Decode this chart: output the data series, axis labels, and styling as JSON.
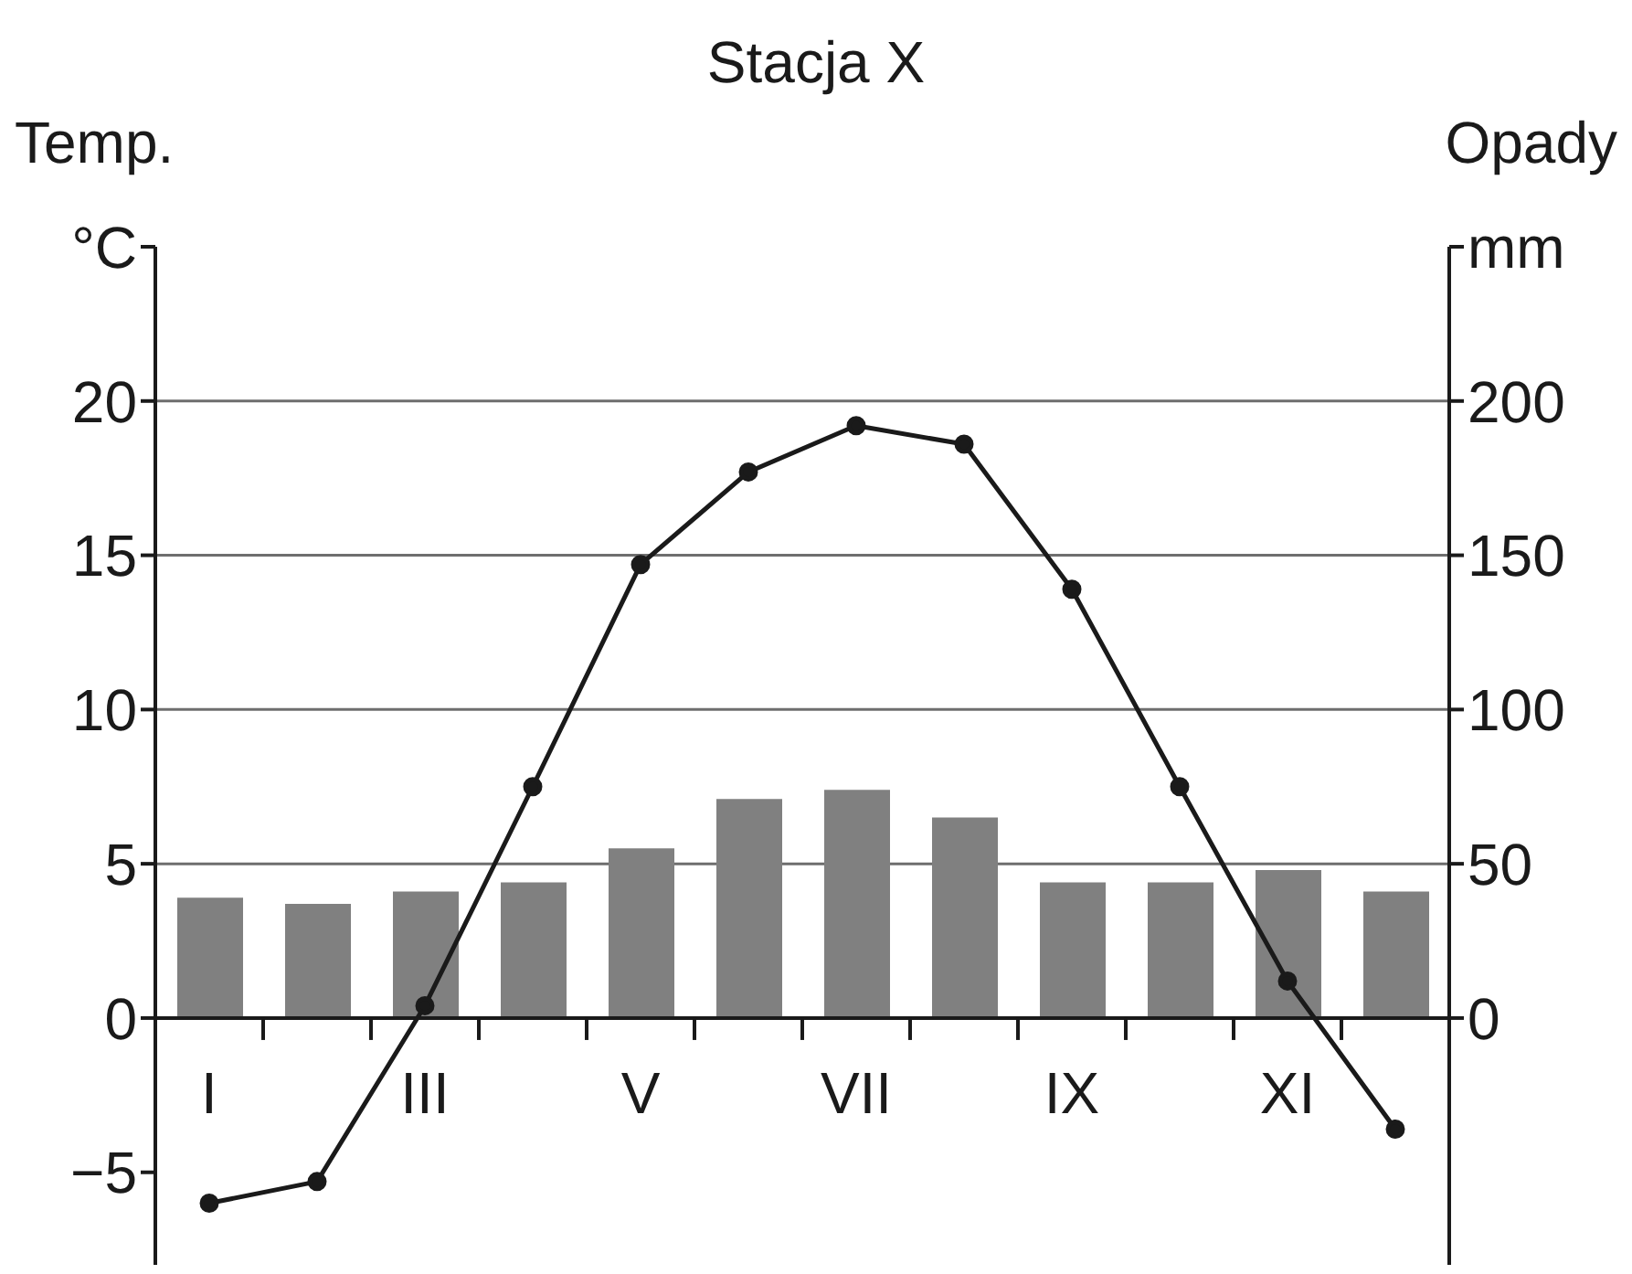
{
  "chart_data": {
    "type": "bar",
    "title": "Stacja X",
    "ylabel": "Temp.",
    "y2label": "Opady",
    "categories": [
      "I",
      null,
      "III",
      null,
      "V",
      null,
      "VII",
      null,
      "IX",
      null,
      "XI",
      null
    ],
    "series": [
      {
        "axis": "y2",
        "color": "#808080",
        "values": [
          39,
          37,
          41,
          44,
          55,
          71,
          74,
          65,
          44,
          44,
          48,
          41
        ]
      },
      {
        "type": "line",
        "axis": "y",
        "color": "#1a1a1a",
        "marker": "circle",
        "line_style": "solid",
        "values": [
          -6.0,
          -5.3,
          0.4,
          7.5,
          14.7,
          17.7,
          19.2,
          18.6,
          13.9,
          7.5,
          1.2,
          -3.6
        ]
      }
    ],
    "ylim": [
      -8,
      25
    ],
    "yticks": [
      -5,
      0,
      5,
      10,
      15,
      20,
      {
        "value": 25,
        "label": "°C"
      }
    ],
    "y2lim": [
      -80,
      250
    ],
    "y2ticks": [
      0,
      50,
      100,
      150,
      200,
      {
        "value": 250,
        "label": "mm"
      }
    ],
    "grid": "y"
  }
}
